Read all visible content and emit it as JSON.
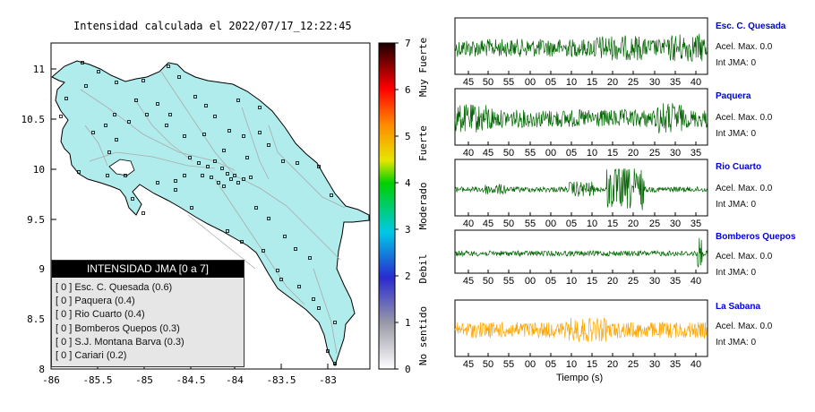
{
  "map": {
    "title": "Intensidad calculada el 2022/07/17_12:22:45",
    "x_ticks": [
      "-86",
      "-85.5",
      "-85",
      "-84.5",
      "-84",
      "-83.5",
      "-83"
    ],
    "y_ticks": [
      "11",
      "10.5",
      "10",
      "9.5",
      "9",
      "8.5",
      "8"
    ]
  },
  "scale": {
    "ticks": [
      "0",
      "1",
      "2",
      "3",
      "4",
      "5",
      "6",
      "7"
    ],
    "labels": [
      "No sentido",
      "Debil",
      "Moderado",
      "Fuerte",
      "Muy Fuerte"
    ]
  },
  "legend": {
    "title": "INTENSIDAD JMA [0 a 7]",
    "items": [
      "[ 0 ]  Esc. C. Quesada (0.6)",
      "[ 0 ]  Paquera (0.4)",
      "[ 0 ]  Rio Cuarto (0.4)",
      "[ 0 ]  Bomberos Quepos (0.3)",
      "[ 0 ]  S.J. Montana Barva (0.3)",
      "[ 0 ]  Cariari (0.2)"
    ]
  },
  "stations": [
    {
      "name": "Esc. C. Quesada",
      "acel": "Acel. Max. 0.0",
      "jma": "Int JMA: 0",
      "color": "#006400",
      "ticks": [
        "45",
        "50",
        "55",
        "00",
        "05",
        "10",
        "15",
        "20",
        "25",
        "30",
        "35",
        "40"
      ]
    },
    {
      "name": "Paquera",
      "acel": "Acel. Max. 0.0",
      "jma": "Int JMA: 0",
      "color": "#006400",
      "ticks": [
        "40",
        "45",
        "50",
        "55",
        "00",
        "05",
        "10",
        "15",
        "20",
        "25",
        "30",
        "35"
      ]
    },
    {
      "name": "Rio Cuarto",
      "acel": "Acel. Max. 0.0",
      "jma": "Int JMA: 0",
      "color": "#006400",
      "ticks": [
        "40",
        "45",
        "50",
        "55",
        "00",
        "05",
        "10",
        "15",
        "20",
        "25",
        "30",
        "35"
      ]
    },
    {
      "name": "Bomberos Quepos",
      "acel": "Acel. Max. 0.0",
      "jma": "Int JMA: 0",
      "color": "#006400",
      "ticks": [
        "45",
        "50",
        "55",
        "00",
        "05",
        "10",
        "15",
        "20",
        "25",
        "30",
        "35",
        "40"
      ]
    },
    {
      "name": "La Sabana",
      "acel": "Acel. Max. 0.0",
      "jma": "Int JMA: 0",
      "color": "#ffa500",
      "ticks": [
        "45",
        "50",
        "55",
        "00",
        "05",
        "10",
        "15",
        "20",
        "25",
        "30",
        "35",
        "40"
      ]
    }
  ],
  "traces": {
    "xlabel": "Tiempo (s)"
  },
  "colors": {
    "land": "#b0ecec",
    "trace_green": "#006400",
    "trace_orange": "#ffa500",
    "station_name": "#0000dd"
  }
}
